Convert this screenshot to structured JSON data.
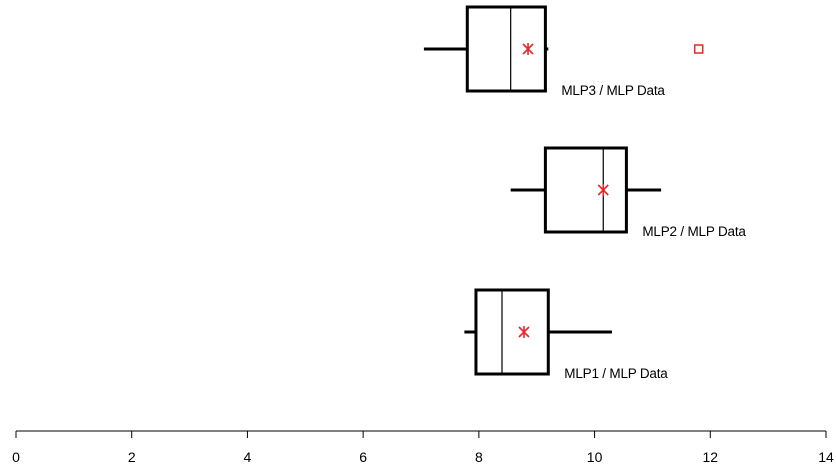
{
  "chart_data": {
    "type": "boxplot",
    "orientation": "horizontal",
    "x_ticks": [
      0,
      2,
      4,
      6,
      8,
      10,
      12,
      14
    ],
    "xlim": [
      0,
      14
    ],
    "grid": false,
    "boxes": [
      {
        "label": "MLP3 / MLP Data",
        "whisker_low": 7.05,
        "q1": 7.8,
        "median": 8.55,
        "q3": 9.15,
        "whisker_high": 9.2,
        "mean": 8.85,
        "outliers": [
          11.8
        ]
      },
      {
        "label": "MLP2 / MLP Data",
        "whisker_low": 8.55,
        "q1": 9.15,
        "median": 10.15,
        "q3": 10.55,
        "whisker_high": 11.15,
        "mean": 10.15,
        "outliers": []
      },
      {
        "label": "MLP1 / MLP Data",
        "whisker_low": 7.75,
        "q1": 7.95,
        "median": 8.4,
        "q3": 9.2,
        "whisker_high": 10.3,
        "mean": 8.78,
        "outliers": []
      }
    ],
    "colors": {
      "box": "#000000",
      "mean_marker": "#e8262b",
      "outlier_marker": "#e8262b"
    }
  }
}
